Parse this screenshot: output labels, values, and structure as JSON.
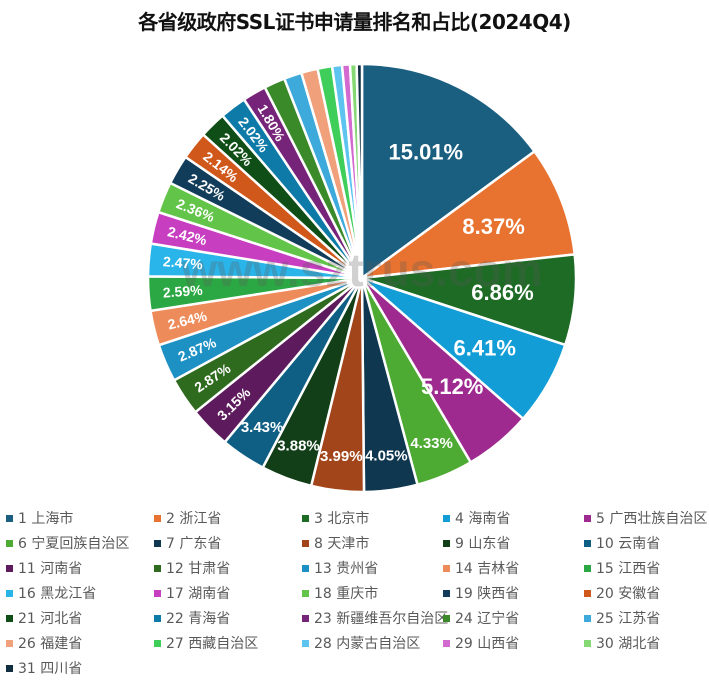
{
  "chart_data": {
    "type": "pie",
    "title": "各省级政府SSL证书申请量排名和占比(2024Q4)",
    "watermark": "www.sztrus.com",
    "start_angle_deg": 0,
    "direction": "clockwise",
    "label_format": "percent (2 decimals), shown for slices >= 1.8%",
    "legend_position": "bottom",
    "categories": [
      "1 上海市",
      "2 浙江省",
      "3 北京市",
      "4 海南省",
      "5 广西壮族自治区",
      "6 宁夏回族自治区",
      "7 广东省",
      "8 天津市",
      "9 山东省",
      "10 云南省",
      "11 河南省",
      "12 甘肃省",
      "13 贵州省",
      "14 吉林省",
      "15 江西省",
      "16 黑龙江省",
      "17 湖南省",
      "18 重庆市",
      "19 陕西省",
      "20 安徽省",
      "21 河北省",
      "22 青海省",
      "23 新疆维吾尔自治区",
      "24 辽宁省",
      "25 江苏省",
      "26 福建省",
      "27 西藏自治区",
      "28 内蒙古自治区",
      "29 山西省",
      "30 湖北省",
      "31 四川省"
    ],
    "values": [
      15.01,
      8.37,
      6.86,
      6.41,
      5.12,
      4.33,
      4.05,
      3.99,
      3.88,
      3.43,
      3.15,
      2.87,
      2.87,
      2.64,
      2.59,
      2.47,
      2.42,
      2.36,
      2.25,
      2.14,
      2.02,
      2.02,
      1.8,
      1.6,
      1.35,
      1.25,
      1.1,
      0.75,
      0.6,
      0.5,
      0.4
    ],
    "labels": [
      "15.01%",
      "8.37%",
      "6.86%",
      "6.41%",
      "5.12%",
      "4.33%",
      "4.05%",
      "3.99%",
      "3.88%",
      "3.43%",
      "3.15%",
      "2.87%",
      "2.87%",
      "2.64%",
      "2.59%",
      "2.47%",
      "2.42%",
      "2.36%",
      "2.25%",
      "2.14%",
      "2.02%",
      "2.02%",
      "1.80%",
      "",
      "",
      "",
      "",
      "",
      "",
      "",
      ""
    ],
    "colors": [
      "#1a5e80",
      "#e8722f",
      "#1d6b25",
      "#139dd6",
      "#9e2a8f",
      "#4daa32",
      "#0f3850",
      "#a3451a",
      "#123f18",
      "#0f5f84",
      "#5d1a5c",
      "#2f6b1f",
      "#1d91c4",
      "#ee8b5a",
      "#2ba843",
      "#2ab5ea",
      "#c83ec1",
      "#62c448",
      "#113d5a",
      "#d0581a",
      "#0f4e16",
      "#0e7aa8",
      "#76237a",
      "#3a8a2a",
      "#3eaadc",
      "#f0a07a",
      "#3fce5a",
      "#5dc4f0",
      "#d36ad0",
      "#85d873",
      "#0f2e40"
    ]
  }
}
